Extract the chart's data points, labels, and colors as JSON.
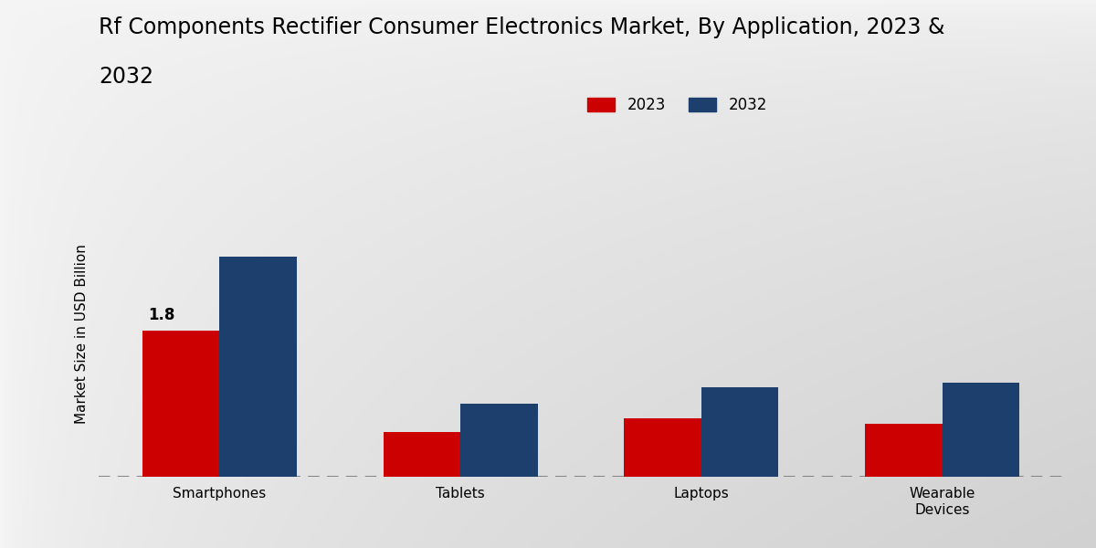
{
  "title_line1": "Rf Components Rectifier Consumer Electronics Market, By Application, 2023 &",
  "title_line2": "2032",
  "ylabel": "Market Size in USD Billion",
  "categories": [
    "Smartphones",
    "Tablets",
    "Laptops",
    "Wearable\nDevices"
  ],
  "values_2023": [
    1.8,
    0.55,
    0.72,
    0.65
  ],
  "values_2032": [
    2.7,
    0.9,
    1.1,
    1.15
  ],
  "color_2023": "#cc0000",
  "color_2032": "#1c3f6e",
  "annotation_value": "1.8",
  "background_color_light": "#f0f0f0",
  "background_color_dark": "#d8d8d8",
  "legend_labels": [
    "2023",
    "2032"
  ],
  "bar_width": 0.32,
  "ylim": [
    0,
    3.5
  ],
  "title_fontsize": 17,
  "ylabel_fontsize": 11,
  "tick_fontsize": 11,
  "legend_fontsize": 12,
  "annotation_fontsize": 12
}
